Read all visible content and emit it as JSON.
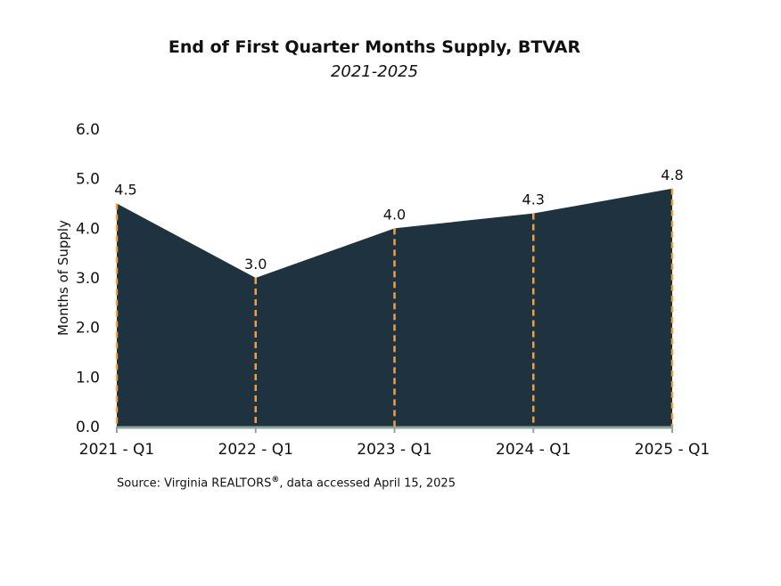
{
  "chart_data": {
    "type": "area",
    "title": "End of First Quarter Months Supply, BTVAR",
    "subtitle": "2021-2025",
    "xlabel": "",
    "ylabel": "Months of Supply",
    "categories": [
      "2021 - Q1",
      "2022 - Q1",
      "2023 - Q1",
      "2024 - Q1",
      "2025 - Q1"
    ],
    "values": [
      4.5,
      3.0,
      4.0,
      4.3,
      4.8
    ],
    "data_labels": [
      "4.5",
      "3.0",
      "4.0",
      "4.3",
      "4.8"
    ],
    "ylim": [
      0,
      6
    ],
    "yticks": [
      "0.0",
      "1.0",
      "2.0",
      "3.0",
      "4.0",
      "5.0",
      "6.0"
    ],
    "grid": false,
    "colors": {
      "area_fill": "#1e3240",
      "drop_lines": "#f0a045",
      "baseline": "#8fa59a"
    }
  },
  "source": {
    "prefix": "Source: Virginia REALTORS",
    "mark": "®",
    "suffix": ", data accessed April 15, 2025"
  }
}
